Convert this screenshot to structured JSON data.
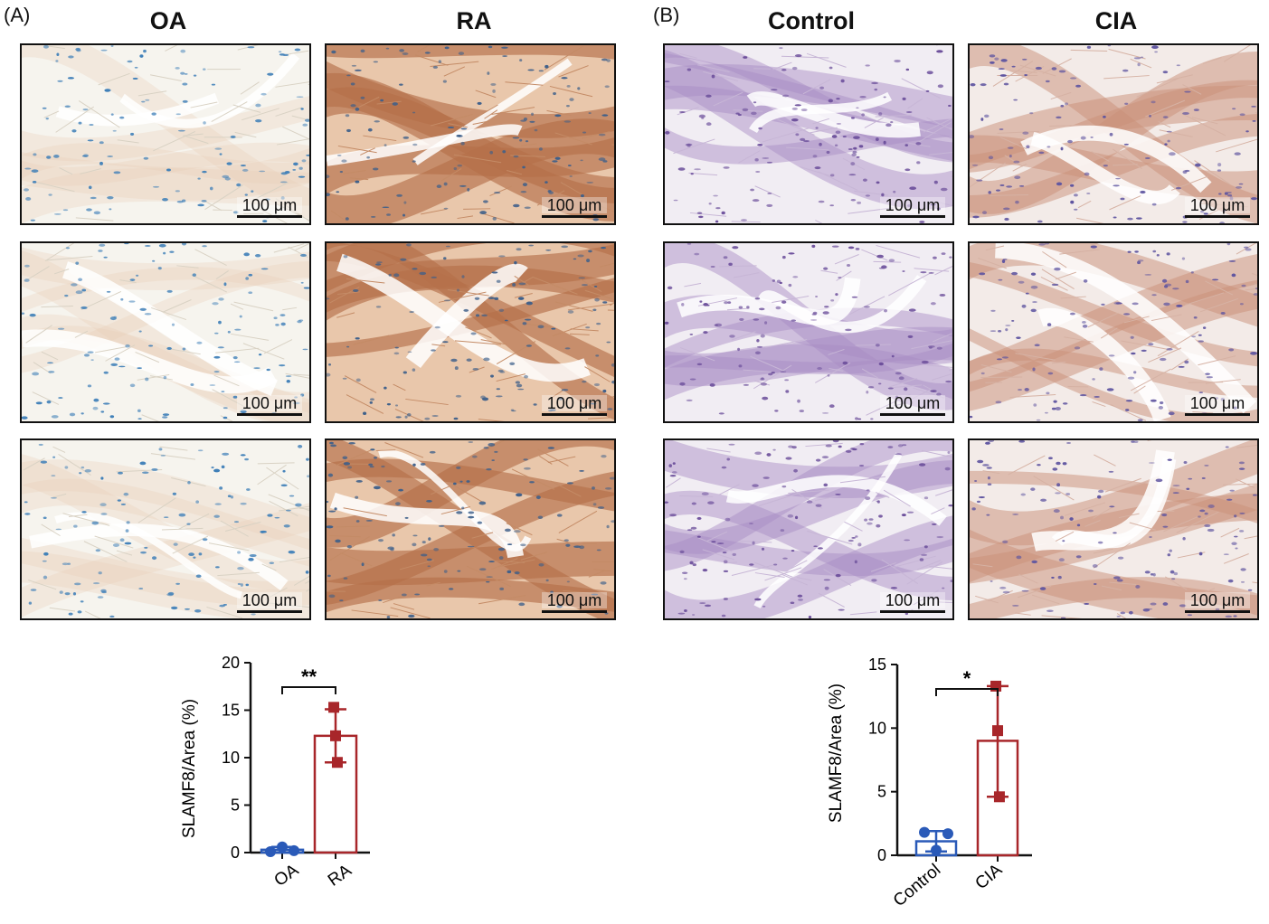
{
  "panels": [
    {
      "letter": "(A)",
      "columns": [
        "OA",
        "RA"
      ],
      "scale_label": "100 μm",
      "chart_data": {
        "type": "bar",
        "categories": [
          "OA",
          "RA"
        ],
        "values": [
          0.3,
          12.3
        ],
        "points": [
          [
            0.1,
            0.6,
            0.2
          ],
          [
            15.3,
            12.3,
            9.5
          ]
        ],
        "error_bars": [
          [
            0.0,
            0.6
          ],
          [
            9.5,
            15.1
          ]
        ],
        "ylabel": "SLAMF8/Area (%)",
        "xlabel": "",
        "ylim": [
          0,
          20
        ],
        "yticks": [
          0,
          5,
          10,
          15,
          20
        ],
        "significance": "**",
        "colors": [
          "#2a5ab8",
          "#a8262a"
        ]
      }
    },
    {
      "letter": "(B)",
      "columns": [
        "Control",
        "CIA"
      ],
      "scale_label": "100 μm",
      "chart_data": {
        "type": "bar",
        "categories": [
          "Control",
          "CIA"
        ],
        "values": [
          1.1,
          9.0
        ],
        "points": [
          [
            1.8,
            0.4,
            1.7
          ],
          [
            13.3,
            9.8,
            4.6
          ]
        ],
        "error_bars": [
          [
            0.3,
            1.9
          ],
          [
            4.6,
            13.3
          ]
        ],
        "ylabel": "SLAMF8/Area (%)",
        "xlabel": "",
        "ylim": [
          0,
          15
        ],
        "yticks": [
          0,
          5,
          10,
          15
        ],
        "significance": "*",
        "colors": [
          "#2a5ab8",
          "#a8262a"
        ]
      }
    }
  ]
}
